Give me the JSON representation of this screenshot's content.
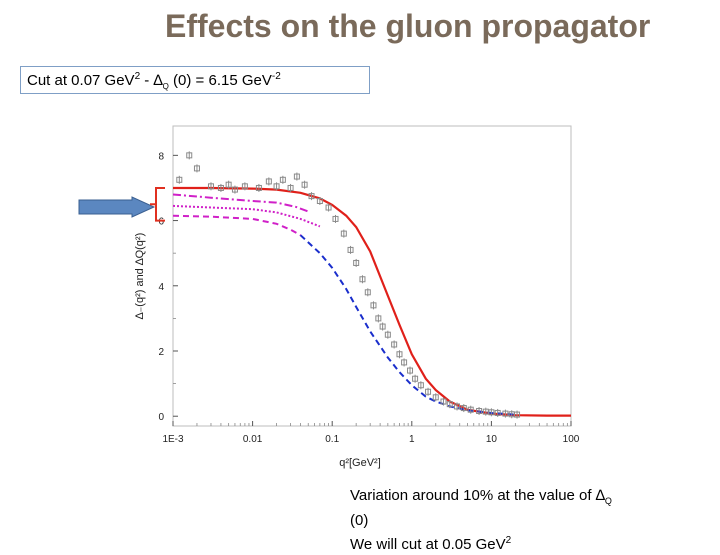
{
  "slide": {
    "title": "Effects on the gluon propagator",
    "cut_box": {
      "prefix": "Cut at  0.07 GeV",
      "prefix_sup": "2",
      "mid": "  - ∆",
      "mid_sub": "Q",
      "value_text": " (0) = 6.15 GeV",
      "value_sup": "-2"
    },
    "note": {
      "line1_text": "Variation around 10%  at  the value of ∆",
      "line1_sub": "Q",
      "line2": "(0)",
      "line3_text": "We will cut at 0.05 GeV",
      "line3_sup": "2"
    },
    "arrow_color": "#5b87c0",
    "bracket_color": "#e03020"
  },
  "chart_data": {
    "type": "line",
    "x_scale": "log",
    "xlim": [
      0.001,
      100
    ],
    "ylim": [
      -0.3,
      8.9
    ],
    "xticks": [
      0.001,
      0.01,
      0.1,
      1,
      10,
      100
    ],
    "xtick_labels": [
      "1E-3",
      "0.01",
      "0.1",
      "1",
      "10",
      "100"
    ],
    "yticks": [
      0,
      2,
      4,
      6,
      8
    ],
    "ytick_labels": [
      "0",
      "2",
      "4",
      "6",
      "8"
    ],
    "xlabel": "q²[GeV²]",
    "ylabel": "∆₋(q²) and ∆Q(q²)",
    "series": [
      {
        "style": "solid",
        "color": "#e0201a",
        "x": [
          0.001,
          0.003,
          0.01,
          0.02,
          0.04,
          0.07,
          0.1,
          0.15,
          0.2,
          0.3,
          0.5,
          0.7,
          1,
          1.5,
          2,
          3,
          5,
          10,
          20,
          50,
          100
        ],
        "y": [
          7.0,
          7.0,
          6.98,
          6.95,
          6.85,
          6.68,
          6.48,
          6.15,
          5.8,
          5.05,
          3.7,
          2.8,
          1.9,
          1.15,
          0.8,
          0.45,
          0.2,
          0.08,
          0.03,
          0.02,
          0.02
        ]
      },
      {
        "style": "dashdot",
        "color": "#d020c8",
        "x": [
          0.001,
          0.003,
          0.01,
          0.02,
          0.035,
          0.05
        ],
        "y": [
          6.8,
          6.7,
          6.6,
          6.55,
          6.42,
          6.28
        ]
      },
      {
        "style": "dotted",
        "color": "#d020c8",
        "x": [
          0.001,
          0.003,
          0.01,
          0.02,
          0.04,
          0.07
        ],
        "y": [
          6.45,
          6.4,
          6.35,
          6.25,
          6.05,
          5.82
        ]
      },
      {
        "style": "dashed",
        "color": "#d020c8",
        "x": [
          0.001,
          0.003,
          0.01,
          0.02,
          0.03,
          0.04
        ],
        "y": [
          6.15,
          6.12,
          6.05,
          5.9,
          5.72,
          5.55
        ]
      },
      {
        "style": "dashed",
        "color": "#1a2ecc",
        "x": [
          0.04,
          0.07,
          0.1,
          0.15,
          0.2,
          0.3,
          0.5,
          0.7,
          1,
          1.5,
          2,
          3,
          5,
          10,
          20
        ],
        "y": [
          5.55,
          5.0,
          4.55,
          3.9,
          3.35,
          2.6,
          1.8,
          1.35,
          0.95,
          0.6,
          0.45,
          0.3,
          0.18,
          0.1,
          0.05
        ]
      },
      {
        "style": "markers",
        "color": "#8a8a8a",
        "x": [
          0.0012,
          0.0016,
          0.002,
          0.003,
          0.004,
          0.005,
          0.006,
          0.008,
          0.012,
          0.016,
          0.02,
          0.024,
          0.03,
          0.036,
          0.045,
          0.055,
          0.07,
          0.09,
          0.11,
          0.14,
          0.17,
          0.2,
          0.24,
          0.28,
          0.33,
          0.38,
          0.43,
          0.5,
          0.6,
          0.7,
          0.8,
          0.95,
          1.1,
          1.3,
          1.6,
          2,
          2.5,
          3,
          3.7,
          4.5,
          5.5,
          7,
          8.5,
          10,
          12,
          15,
          18,
          21
        ],
        "y": [
          7.25,
          8.0,
          7.6,
          7.05,
          7.0,
          7.1,
          6.95,
          7.05,
          7.0,
          7.2,
          7.05,
          7.25,
          7.0,
          7.35,
          7.1,
          6.75,
          6.6,
          6.4,
          6.05,
          5.6,
          5.1,
          4.7,
          4.2,
          3.8,
          3.4,
          3.0,
          2.75,
          2.5,
          2.2,
          1.9,
          1.65,
          1.4,
          1.15,
          0.95,
          0.75,
          0.58,
          0.45,
          0.37,
          0.3,
          0.25,
          0.2,
          0.16,
          0.14,
          0.12,
          0.1,
          0.08,
          0.06,
          0.05
        ]
      }
    ]
  }
}
